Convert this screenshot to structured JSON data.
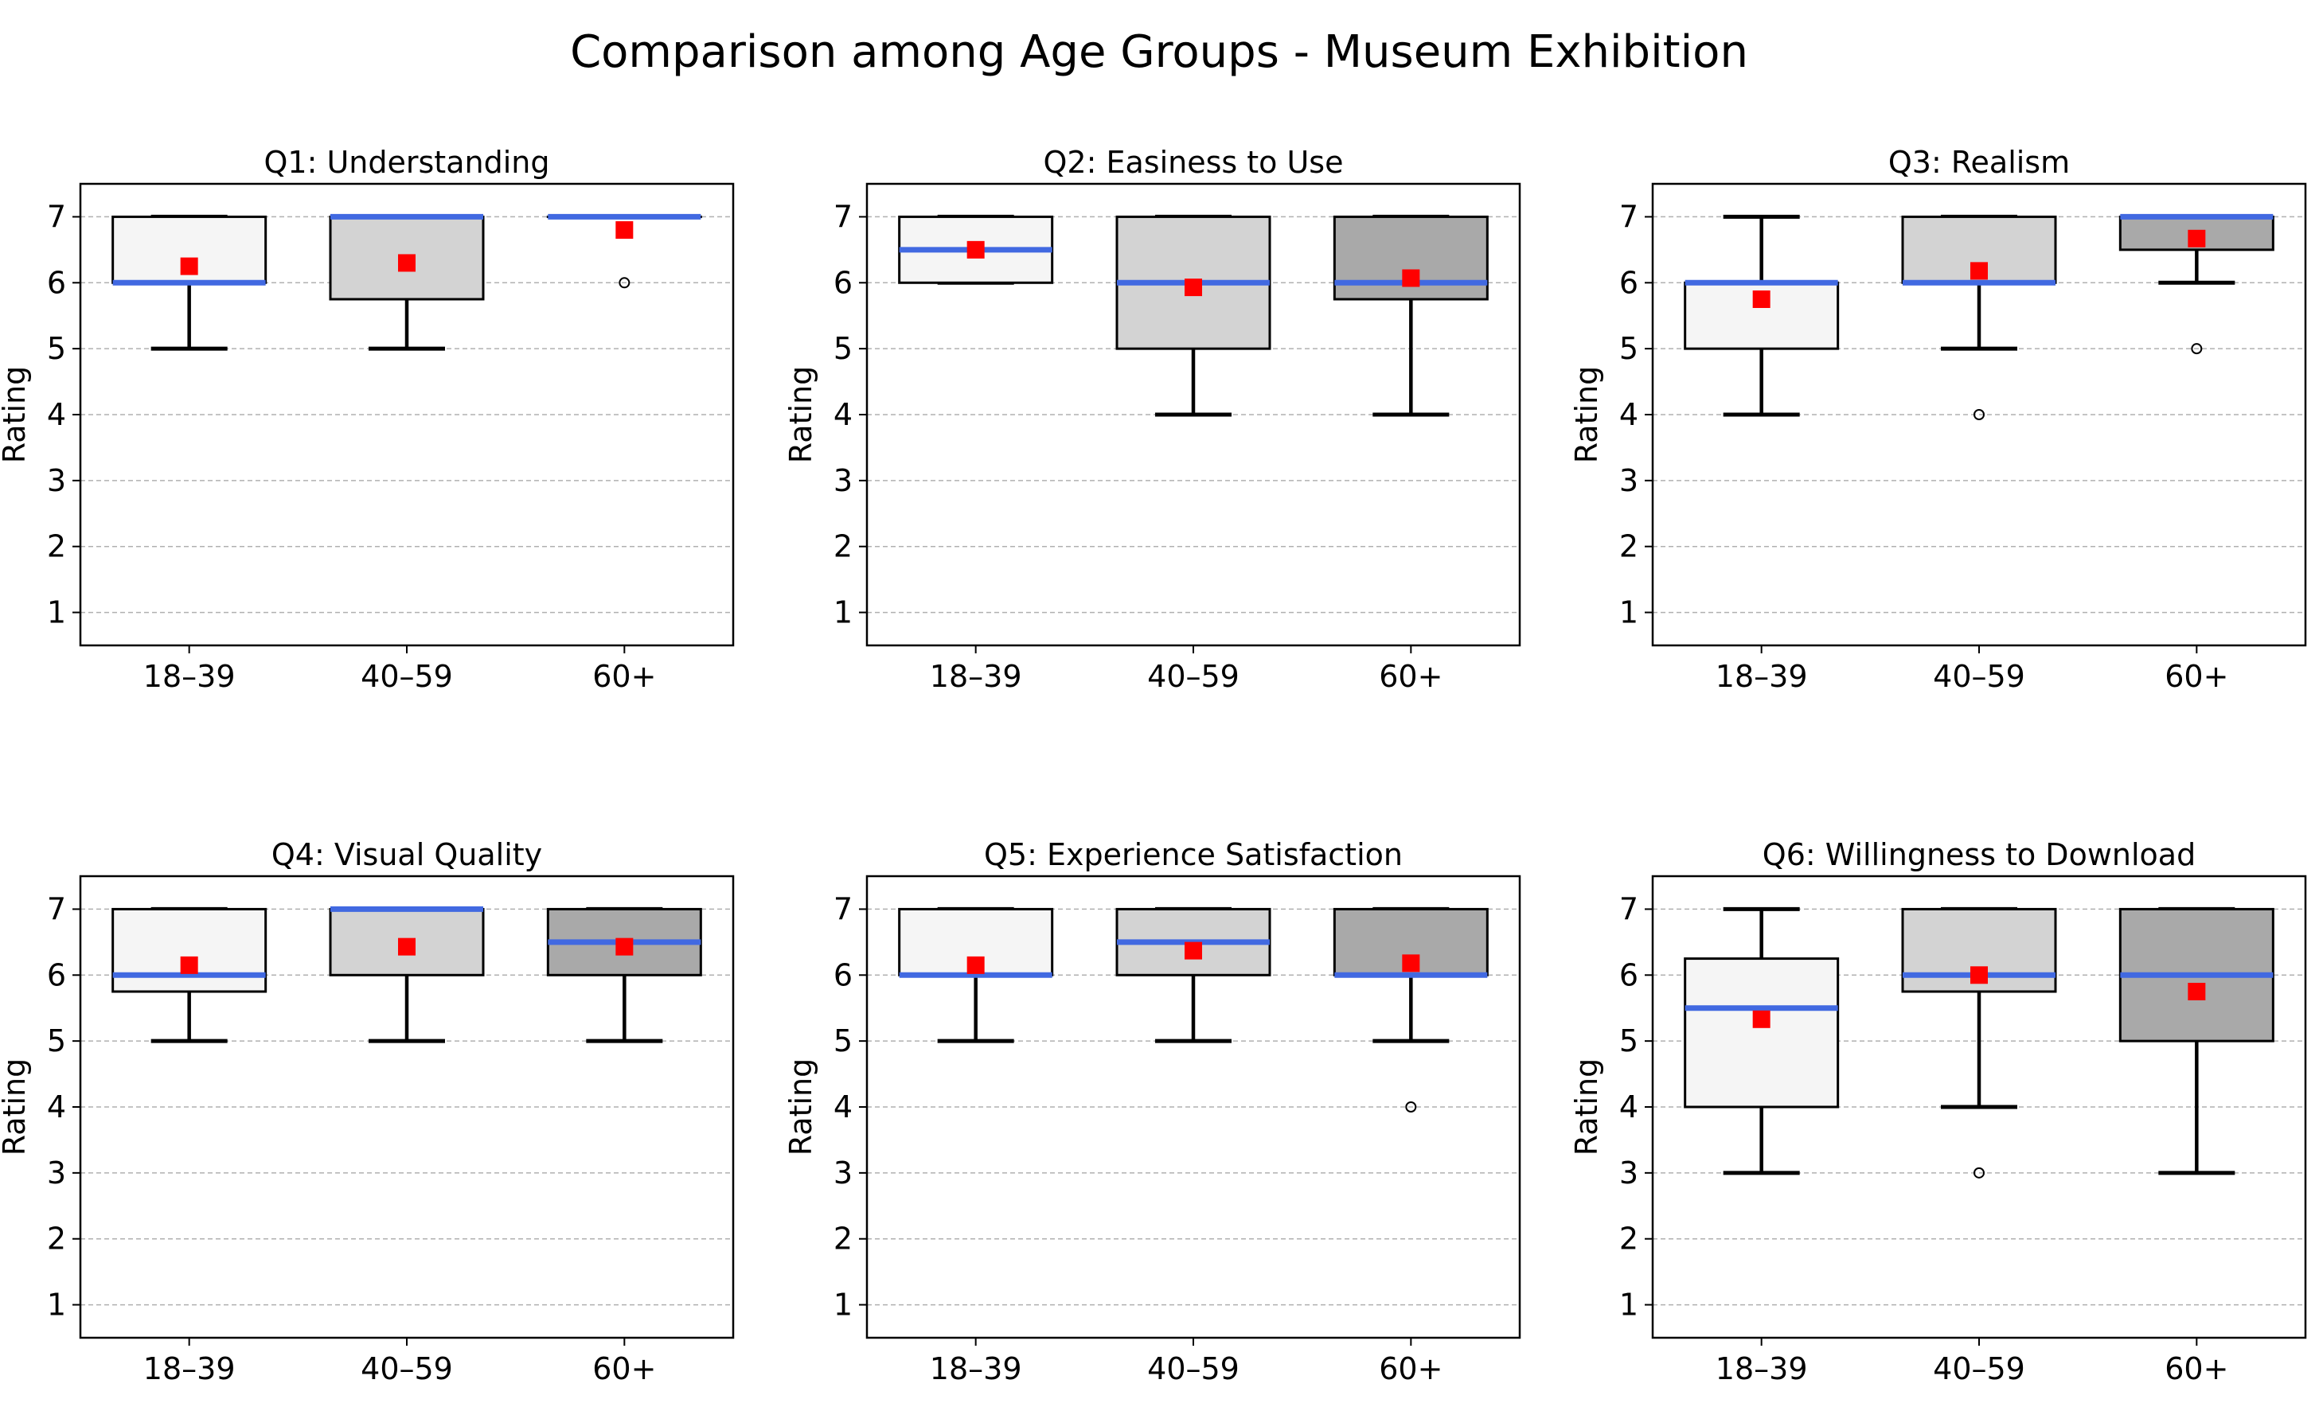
{
  "chart_data": {
    "type": "box",
    "title": "Comparison among Age Groups - Museum Exhibition",
    "categories": [
      "18–39",
      "40–59",
      "60+"
    ],
    "ylabel": "Rating",
    "ylim": [
      0.5,
      7.5
    ],
    "yticks": [
      "1",
      "2",
      "3",
      "4",
      "5",
      "6",
      "7"
    ],
    "grid": "horizontal dashed",
    "colors": {
      "box_fills": [
        "#f5f5f5",
        "#d3d3d3",
        "#a9a9a9"
      ],
      "median": "#4169e1",
      "mean": "#ff0000",
      "box_edge": "#000000"
    },
    "panels": [
      {
        "title": "Q1: Understanding",
        "boxes": [
          {
            "whislo": 5,
            "q1": 6,
            "med": 6,
            "q3": 7,
            "whishi": 7,
            "mean": 6.25,
            "fliers": []
          },
          {
            "whislo": 5,
            "q1": 5.75,
            "med": 7,
            "q3": 7,
            "whishi": 7,
            "mean": 6.3,
            "fliers": []
          },
          {
            "whislo": 7,
            "q1": 7,
            "med": 7,
            "q3": 7,
            "whishi": 7,
            "mean": 6.8,
            "fliers": [
              6
            ]
          }
        ]
      },
      {
        "title": "Q2: Easiness to Use",
        "boxes": [
          {
            "whislo": 6,
            "q1": 6,
            "med": 6.5,
            "q3": 7,
            "whishi": 7,
            "mean": 6.5,
            "fliers": []
          },
          {
            "whislo": 4,
            "q1": 5,
            "med": 6,
            "q3": 7,
            "whishi": 7,
            "mean": 5.93,
            "fliers": []
          },
          {
            "whislo": 4,
            "q1": 5.75,
            "med": 6,
            "q3": 7,
            "whishi": 7,
            "mean": 6.07,
            "fliers": []
          }
        ]
      },
      {
        "title": "Q3: Realism",
        "boxes": [
          {
            "whislo": 4,
            "q1": 5,
            "med": 6,
            "q3": 6,
            "whishi": 7,
            "mean": 5.75,
            "fliers": []
          },
          {
            "whislo": 5,
            "q1": 6,
            "med": 6,
            "q3": 7,
            "whishi": 7,
            "mean": 6.18,
            "fliers": [
              4
            ]
          },
          {
            "whislo": 6,
            "q1": 6.5,
            "med": 7,
            "q3": 7,
            "whishi": 7,
            "mean": 6.67,
            "fliers": [
              5
            ]
          }
        ]
      },
      {
        "title": "Q4: Visual Quality",
        "boxes": [
          {
            "whislo": 5,
            "q1": 5.75,
            "med": 6,
            "q3": 7,
            "whishi": 7,
            "mean": 6.15,
            "fliers": []
          },
          {
            "whislo": 5,
            "q1": 6,
            "med": 7,
            "q3": 7,
            "whishi": 7,
            "mean": 6.43,
            "fliers": []
          },
          {
            "whislo": 5,
            "q1": 6,
            "med": 6.5,
            "q3": 7,
            "whishi": 7,
            "mean": 6.43,
            "fliers": []
          }
        ]
      },
      {
        "title": "Q5: Experience Satisfaction",
        "boxes": [
          {
            "whislo": 5,
            "q1": 6,
            "med": 6,
            "q3": 7,
            "whishi": 7,
            "mean": 6.15,
            "fliers": []
          },
          {
            "whislo": 5,
            "q1": 6,
            "med": 6.5,
            "q3": 7,
            "whishi": 7,
            "mean": 6.37,
            "fliers": []
          },
          {
            "whislo": 5,
            "q1": 6,
            "med": 6,
            "q3": 7,
            "whishi": 7,
            "mean": 6.18,
            "fliers": [
              4
            ]
          }
        ]
      },
      {
        "title": "Q6: Willingness to Download",
        "boxes": [
          {
            "whislo": 3,
            "q1": 4,
            "med": 5.5,
            "q3": 6.25,
            "whishi": 7,
            "mean": 5.33,
            "fliers": []
          },
          {
            "whislo": 4,
            "q1": 5.75,
            "med": 6,
            "q3": 7,
            "whishi": 7,
            "mean": 6.0,
            "fliers": [
              3
            ]
          },
          {
            "whislo": 3,
            "q1": 5,
            "med": 6,
            "q3": 7,
            "whishi": 7,
            "mean": 5.75,
            "fliers": []
          }
        ]
      }
    ]
  }
}
